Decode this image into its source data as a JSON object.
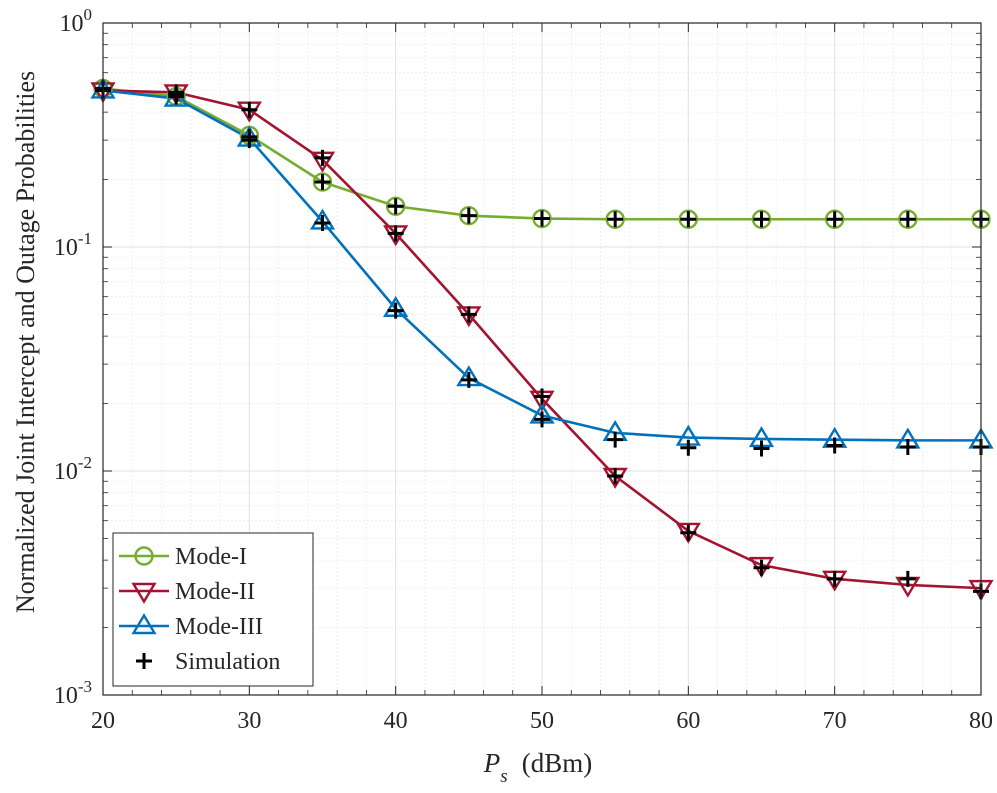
{
  "chart_data": {
    "type": "line",
    "title": "",
    "xlabel_var": "P",
    "xlabel_sub": "s",
    "xlabel_unit": "(dBm)",
    "ylabel": "Normalized Joint Intercept and Outage Probabilities",
    "xscale": "linear",
    "yscale": "log",
    "xlim": [
      20,
      80
    ],
    "ylim": [
      0.001,
      1
    ],
    "grid": true,
    "minor_grid": true,
    "x_ticks": [
      20,
      30,
      40,
      50,
      60,
      70,
      80
    ],
    "x_tick_labels": [
      "20",
      "30",
      "40",
      "50",
      "60",
      "70",
      "80"
    ],
    "y_ticks": [
      {
        "value": 1,
        "base": "10",
        "exp": "0"
      },
      {
        "value": 0.1,
        "base": "10",
        "exp": "-1"
      },
      {
        "value": 0.01,
        "base": "10",
        "exp": "-2"
      },
      {
        "value": 0.001,
        "base": "10",
        "exp": "-3"
      }
    ],
    "legend_position": "bottom-left",
    "x": [
      20,
      25,
      30,
      35,
      40,
      45,
      50,
      55,
      60,
      65,
      70,
      75,
      80
    ],
    "series": [
      {
        "name": "Mode-I",
        "color": "#77AC30",
        "marker": "circle",
        "values": [
          0.51,
          0.47,
          0.315,
          0.195,
          0.152,
          0.138,
          0.134,
          0.133,
          0.133,
          0.133,
          0.133,
          0.133,
          0.133
        ]
      },
      {
        "name": "Mode-II",
        "color": "#A2142F",
        "marker": "triangle-down",
        "values": [
          0.5,
          0.49,
          0.41,
          0.245,
          0.115,
          0.05,
          0.021,
          0.0095,
          0.0054,
          0.0038,
          0.0033,
          0.0031,
          0.003
        ]
      },
      {
        "name": "Mode-III",
        "color": "#0072BD",
        "marker": "triangle-up",
        "values": [
          0.5,
          0.46,
          0.305,
          0.13,
          0.053,
          0.026,
          0.0177,
          0.0148,
          0.0141,
          0.0139,
          0.0138,
          0.0137,
          0.0137
        ]
      },
      {
        "name": "Simulation",
        "color": "#000000",
        "marker": "plus",
        "values": [
          0.5,
          0.48,
          0.3,
          0.128,
          0.052,
          0.0255,
          0.017,
          0.0138,
          0.0127,
          0.0126,
          0.013,
          0.0128,
          0.0128
        ]
      },
      {
        "name": "",
        "color": "#000000",
        "marker": "plus",
        "values": [
          0.5,
          0.49,
          0.41,
          0.25,
          0.115,
          0.05,
          0.0215,
          0.0095,
          0.0053,
          0.0037,
          0.0033,
          0.0033,
          0.0029
        ]
      },
      {
        "name": "",
        "color": "#000000",
        "marker": "plus",
        "values": [
          0.51,
          0.47,
          0.31,
          0.195,
          0.152,
          0.138,
          0.134,
          0.133,
          0.133,
          0.133,
          0.133,
          0.133,
          0.133
        ]
      }
    ]
  }
}
